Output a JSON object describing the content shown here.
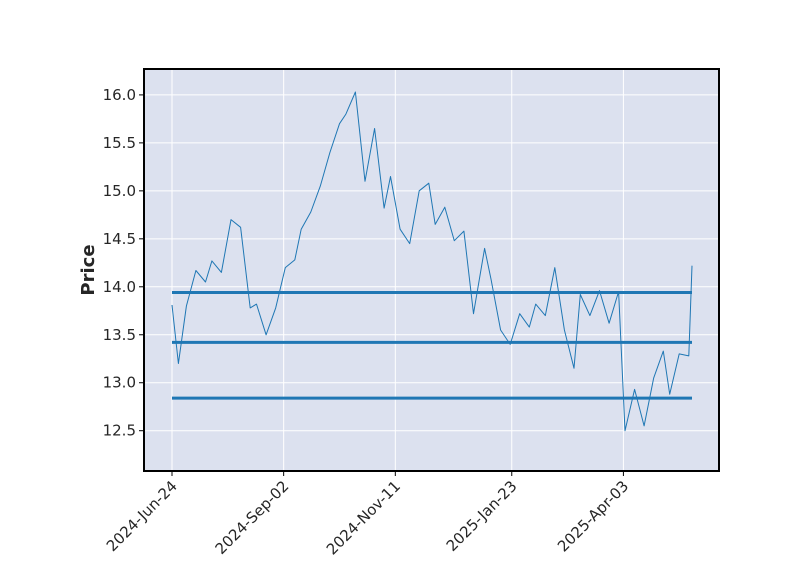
{
  "chart_data": {
    "type": "line",
    "title": "",
    "xlabel": "",
    "ylabel": "Price",
    "x_tick_labels": [
      "2024-Jun-24",
      "2024-Sep-02",
      "2024-Nov-11",
      "2025-Jan-23",
      "2025-Apr-03"
    ],
    "y_ticks": [
      12.5,
      13.0,
      13.5,
      14.0,
      14.5,
      15.0,
      15.5,
      16.0
    ],
    "ylim": [
      12.08,
      16.27
    ],
    "grid": true,
    "background_color": "#dce1ef",
    "series": [
      {
        "color": "#1f77b4",
        "x": [
          "2024-06-24",
          "2024-06-28",
          "2024-07-03",
          "2024-07-09",
          "2024-07-15",
          "2024-07-19",
          "2024-07-25",
          "2024-07-31",
          "2024-08-06",
          "2024-08-12",
          "2024-08-16",
          "2024-08-22",
          "2024-08-28",
          "2024-09-03",
          "2024-09-09",
          "2024-09-13",
          "2024-09-19",
          "2024-09-25",
          "2024-10-01",
          "2024-10-07",
          "2024-10-11",
          "2024-10-17",
          "2024-10-23",
          "2024-10-29",
          "2024-11-04",
          "2024-11-08",
          "2024-11-14",
          "2024-11-20",
          "2024-11-26",
          "2024-12-02",
          "2024-12-06",
          "2024-12-12",
          "2024-12-18",
          "2024-12-24",
          "2024-12-30",
          "2025-01-06",
          "2025-01-10",
          "2025-01-16",
          "2025-01-22",
          "2025-01-28",
          "2025-02-03",
          "2025-02-07",
          "2025-02-13",
          "2025-02-19",
          "2025-02-25",
          "2025-03-03",
          "2025-03-07",
          "2025-03-13",
          "2025-03-19",
          "2025-03-25",
          "2025-03-31",
          "2025-04-04",
          "2025-04-10",
          "2025-04-16",
          "2025-04-22",
          "2025-04-28",
          "2025-05-02",
          "2025-05-08",
          "2025-05-14",
          "2025-05-16"
        ],
        "y": [
          13.81,
          13.2,
          13.8,
          14.17,
          14.05,
          14.27,
          14.15,
          14.7,
          14.62,
          13.78,
          13.82,
          13.5,
          13.78,
          14.2,
          14.28,
          14.6,
          14.78,
          15.05,
          15.4,
          15.7,
          15.8,
          16.03,
          15.1,
          15.65,
          14.82,
          15.15,
          14.6,
          14.45,
          15.0,
          15.08,
          14.65,
          14.83,
          14.48,
          14.58,
          13.72,
          14.4,
          14.08,
          13.55,
          13.4,
          13.72,
          13.58,
          13.82,
          13.7,
          14.2,
          13.55,
          13.15,
          13.92,
          13.7,
          13.96,
          13.62,
          13.95,
          12.5,
          12.93,
          12.55,
          13.05,
          13.33,
          12.88,
          13.3,
          13.28,
          14.22
        ],
        "horizontal_lines": [
          13.94,
          13.42,
          12.84
        ]
      }
    ]
  }
}
